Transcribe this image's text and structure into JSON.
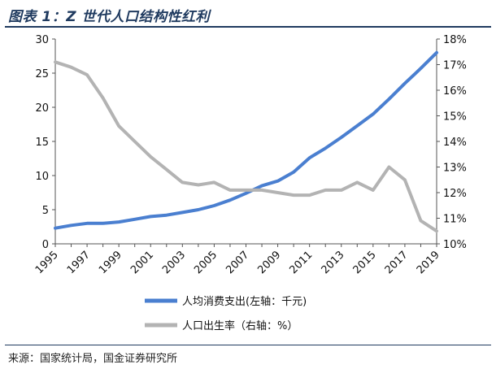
{
  "title": "图表 1：Z 世代人口结构性红利",
  "source": "来源：国家统计局，国金证券研究所",
  "chart_data": {
    "type": "line",
    "x": [
      1995,
      1996,
      1997,
      1998,
      1999,
      2000,
      2001,
      2002,
      2003,
      2004,
      2005,
      2006,
      2007,
      2008,
      2009,
      2010,
      2011,
      2012,
      2013,
      2014,
      2015,
      2016,
      2017,
      2018,
      2019
    ],
    "x_tick_labels": [
      "1995",
      "1997",
      "1999",
      "2001",
      "2003",
      "2005",
      "2007",
      "2009",
      "2011",
      "2013",
      "2015",
      "2017",
      "2019"
    ],
    "left_axis": {
      "range": [
        0,
        30
      ],
      "ticks": [
        "0",
        "5",
        "10",
        "15",
        "20",
        "25",
        "30"
      ]
    },
    "right_axis": {
      "range": [
        10,
        18
      ],
      "ticks": [
        "10%",
        "11%",
        "12%",
        "13%",
        "14%",
        "15%",
        "16%",
        "17%",
        "18%"
      ]
    },
    "series": [
      {
        "name": "人均消费支出(左轴：千元)",
        "axis": "left",
        "color": "#4a7fd0",
        "values": [
          2.3,
          2.7,
          3.0,
          3.0,
          3.2,
          3.6,
          4.0,
          4.2,
          4.6,
          5.0,
          5.6,
          6.4,
          7.4,
          8.5,
          9.2,
          10.5,
          12.6,
          14.0,
          15.6,
          17.3,
          19.0,
          21.2,
          23.5,
          25.7,
          28.0
        ]
      },
      {
        "name": "人口出生率（右轴：%）",
        "axis": "right",
        "color": "#b3b3b3",
        "values": [
          17.1,
          16.9,
          16.6,
          15.7,
          14.6,
          14.0,
          13.4,
          12.9,
          12.4,
          12.3,
          12.4,
          12.1,
          12.1,
          12.1,
          12.0,
          11.9,
          11.9,
          12.1,
          12.1,
          12.4,
          12.1,
          13.0,
          12.5,
          10.9,
          10.5
        ]
      }
    ]
  }
}
